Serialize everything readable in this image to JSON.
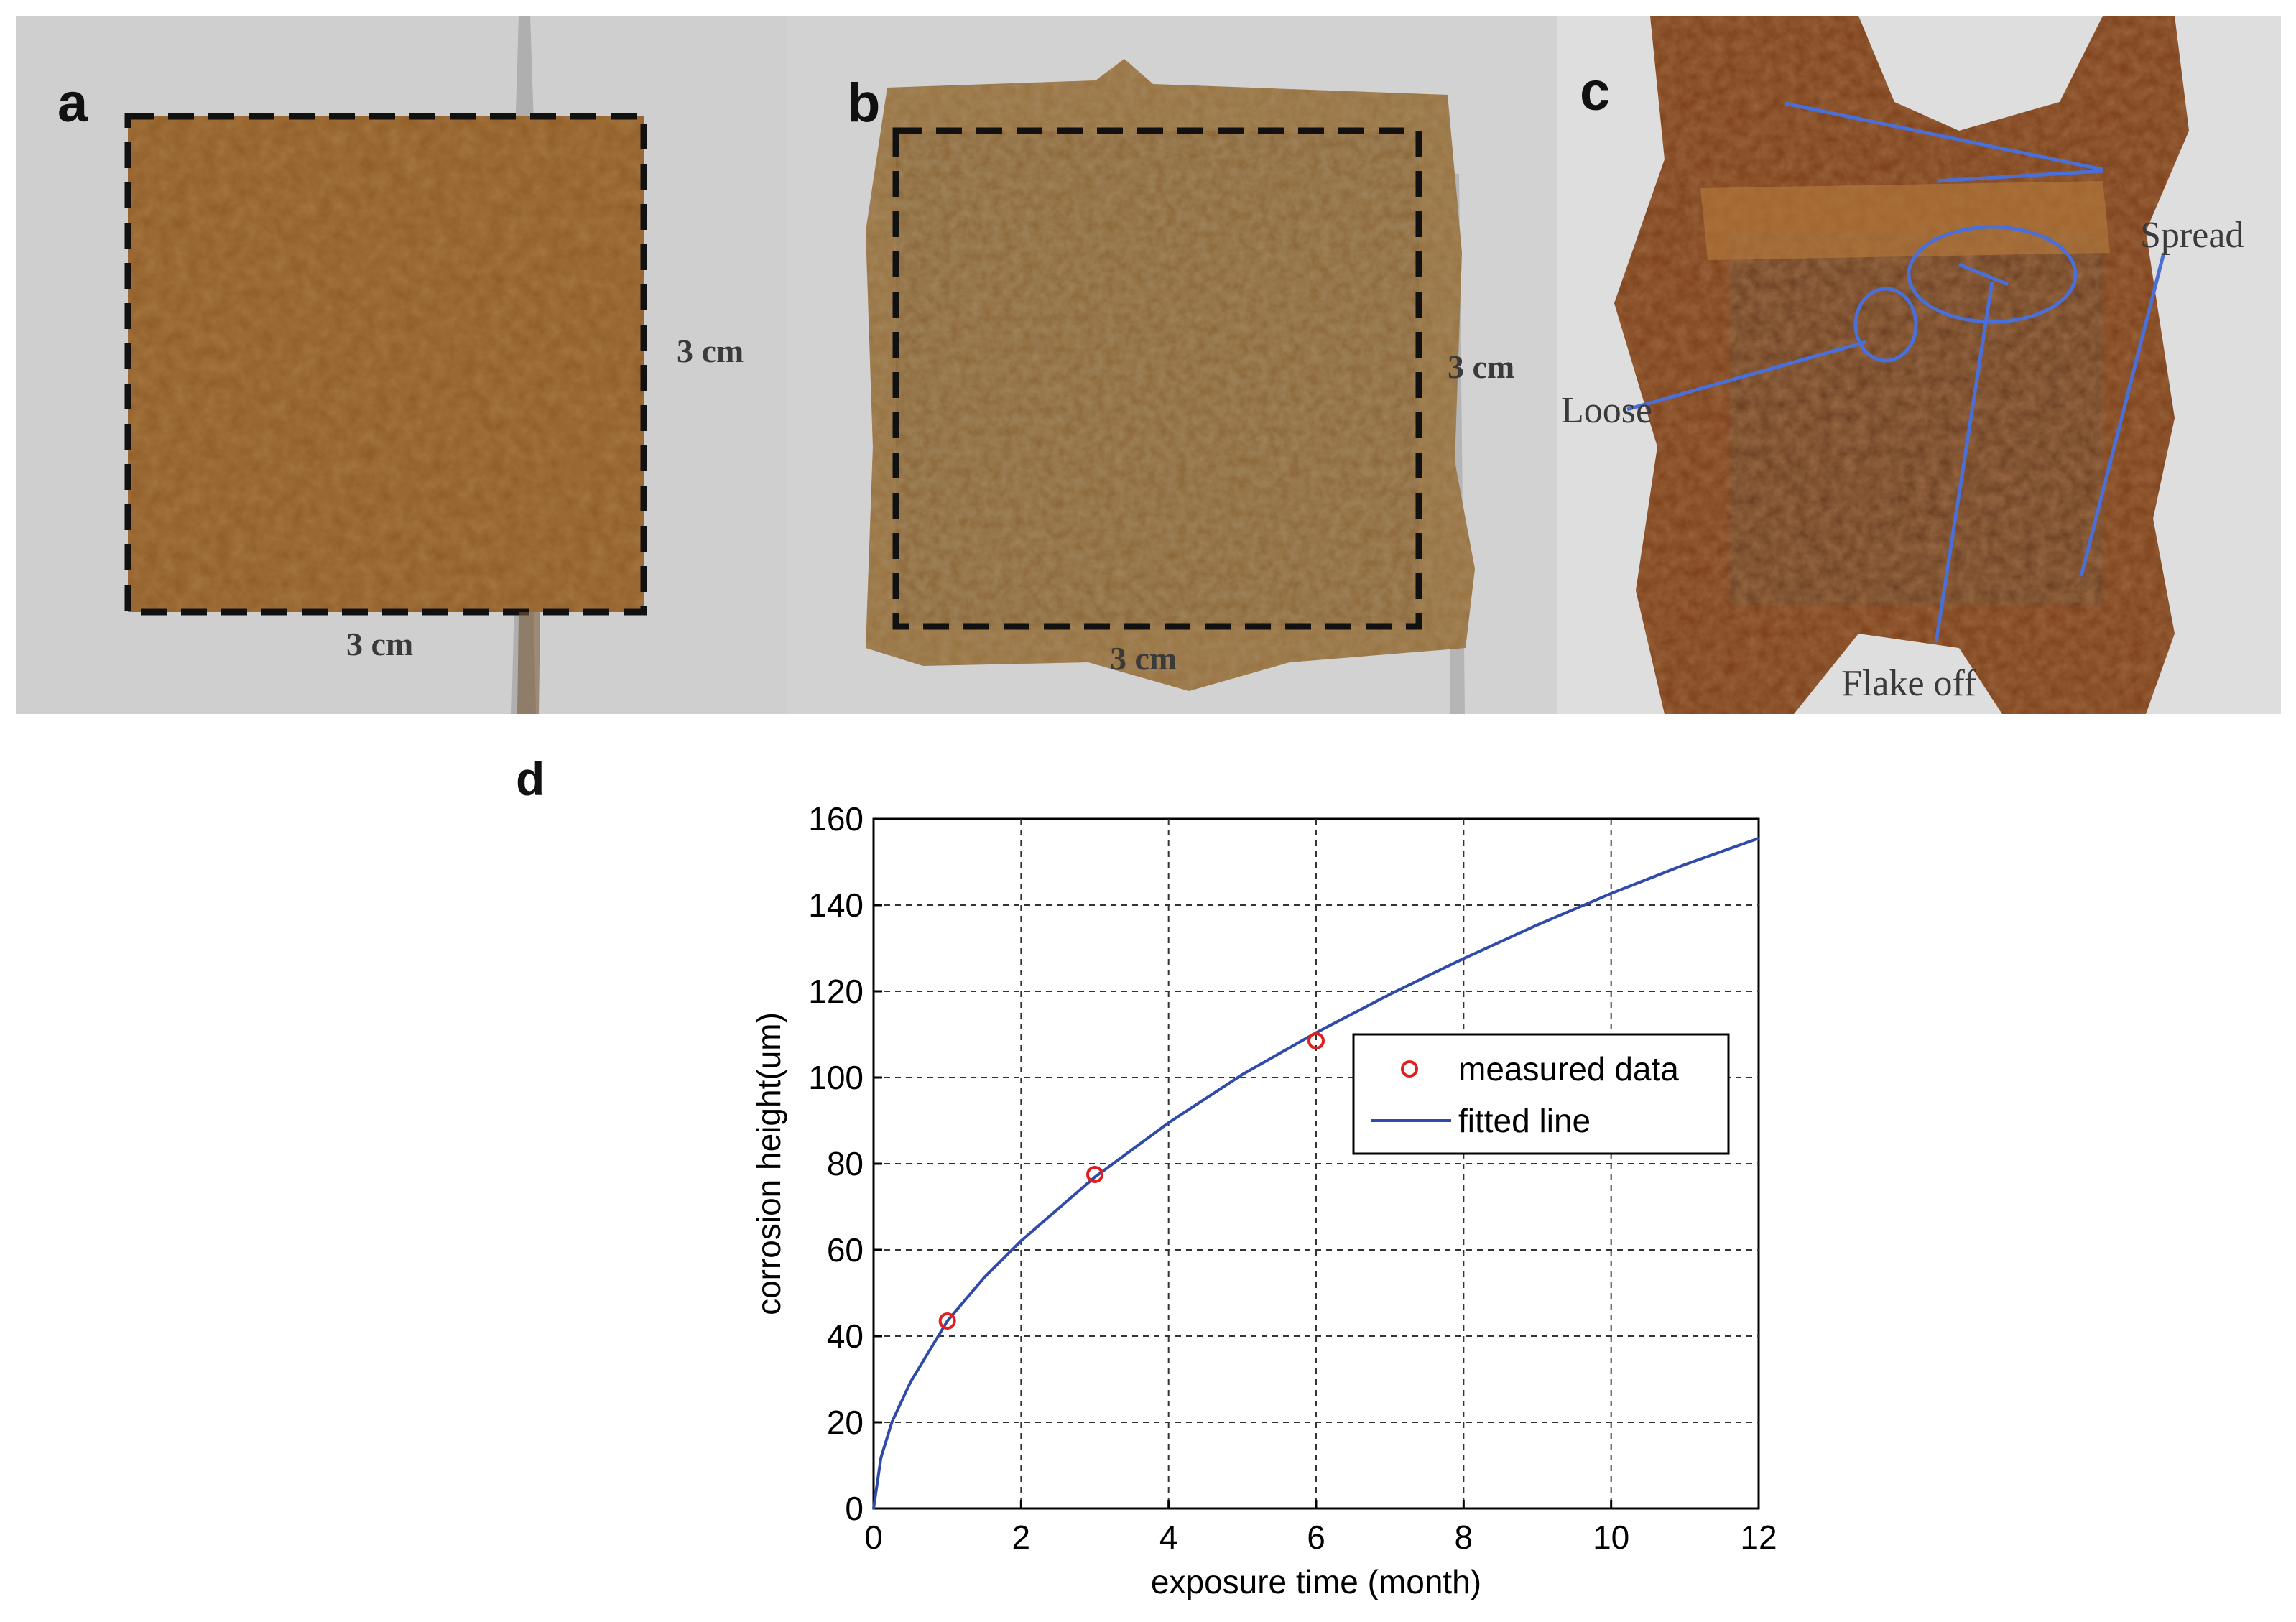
{
  "panels": {
    "a": {
      "letter": "a",
      "width_label": "3 cm",
      "height_label": "3 cm"
    },
    "b": {
      "letter": "b",
      "width_label": "3 cm",
      "height_label": "3 cm"
    },
    "c": {
      "letter": "c",
      "annotations": {
        "spread": "Spread",
        "loose": "Loose",
        "flake_off": "Flake off"
      }
    },
    "d": {
      "letter": "d"
    }
  },
  "colors": {
    "rust": "#8f5a22",
    "rust_dark": "#6e3f17",
    "background_gray": "#c9c9c9",
    "annotation_blue": "#4a6fd6",
    "fitted_line": "#2f4aa8",
    "measured_marker": "#e02020"
  },
  "chart_data": {
    "type": "scatter",
    "xlabel": "exposure time (month)",
    "ylabel": "corrosion height(um)",
    "xlim": [
      0,
      12
    ],
    "ylim": [
      0,
      160
    ],
    "xticks": [
      0,
      2,
      4,
      6,
      8,
      10,
      12
    ],
    "yticks": [
      0,
      20,
      40,
      60,
      80,
      100,
      120,
      140,
      160
    ],
    "grid": true,
    "legend_position": "center-right",
    "series": [
      {
        "name": "measured data",
        "style": "red-circle-markers",
        "x": [
          1,
          3,
          6
        ],
        "y": [
          43.5,
          77.5,
          108.5
        ]
      },
      {
        "name": "fitted line",
        "style": "blue-line",
        "x": [
          0,
          0.1,
          0.25,
          0.5,
          1,
          1.5,
          2,
          3,
          4,
          5,
          6,
          7,
          8,
          9,
          10,
          11,
          12
        ],
        "y": [
          0,
          11.8,
          20.1,
          29.3,
          43.5,
          53.6,
          62.1,
          76.9,
          89.5,
          100.7,
          110.4,
          119.3,
          127.6,
          135.4,
          142.7,
          149.4,
          155.5
        ]
      }
    ]
  }
}
